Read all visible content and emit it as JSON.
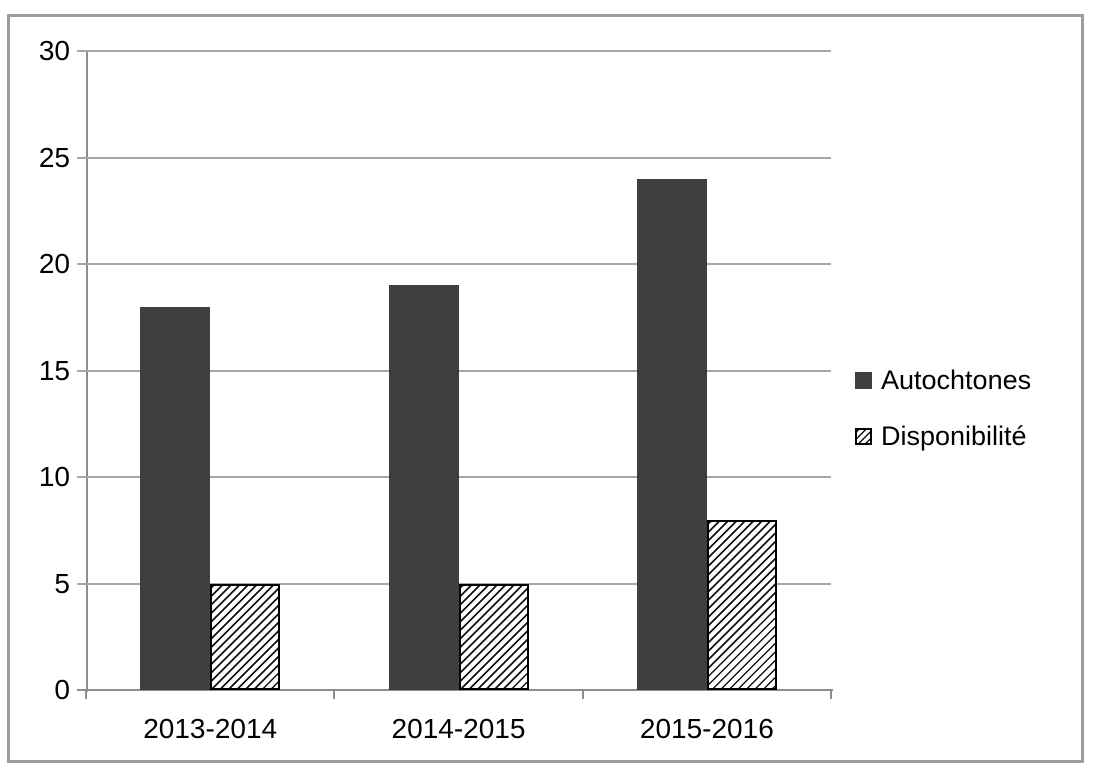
{
  "chart_data": {
    "type": "bar",
    "title": "",
    "xlabel": "",
    "ylabel": "",
    "categories": [
      "2013-2014",
      "2014-2015",
      "2015-2016"
    ],
    "series": [
      {
        "name": "Autochtones",
        "values": [
          18,
          19,
          24
        ],
        "fill": "solid",
        "color": "#3f3f3f"
      },
      {
        "name": "Disponibilité",
        "values": [
          5,
          5,
          8
        ],
        "fill": "diagonal-hatch",
        "color": "#ffffff",
        "hatch_color": "#111111"
      }
    ],
    "ylim": [
      0,
      30
    ],
    "yticks": [
      0,
      5,
      10,
      15,
      20,
      25,
      30
    ],
    "grid": true,
    "legend_position": "right"
  },
  "colors": {
    "bar_solid": "#3f3f3f",
    "hatch_line": "#111111",
    "gridline": "#a6a6a6",
    "axis": "#8e8e8e",
    "frame_border": "#9e9e9e",
    "text": "#000000",
    "background": "#ffffff"
  }
}
